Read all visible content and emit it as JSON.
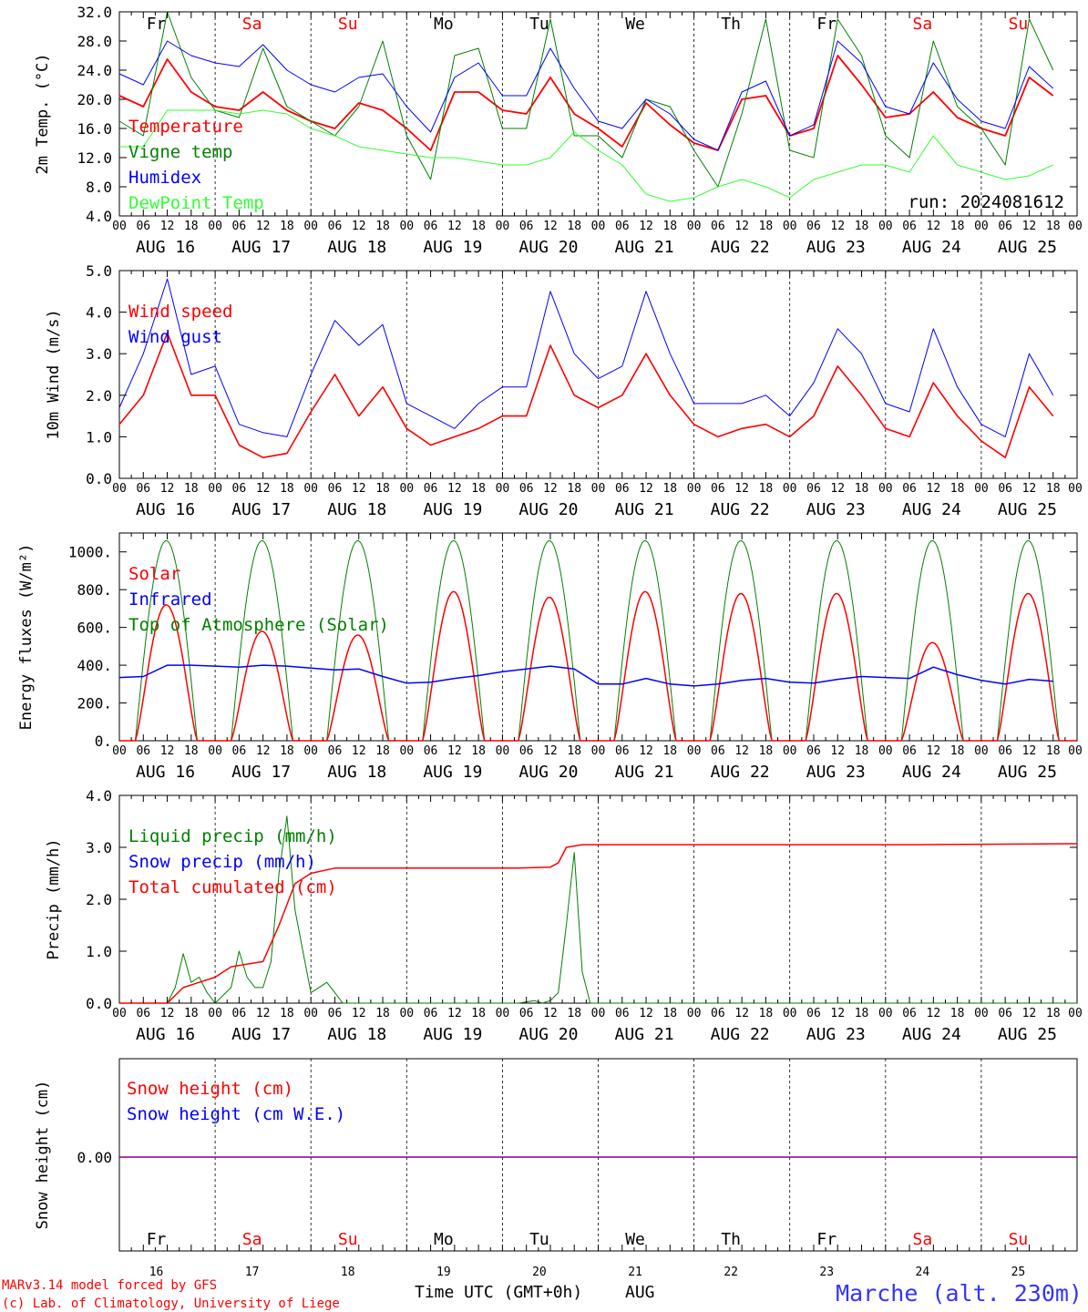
{
  "days": [
    "AUG 16",
    "AUG 17",
    "AUG 18",
    "AUG 19",
    "AUG 20",
    "AUG 21",
    "AUG 22",
    "AUG 23",
    "AUG 24",
    "AUG 25"
  ],
  "hour_ticks": [
    "00",
    "06",
    "12",
    "18"
  ],
  "last_tick": "00",
  "weekdays": [
    {
      "label": "Fr",
      "color": "#000000"
    },
    {
      "label": "Sa",
      "color": "#ff0000"
    },
    {
      "label": "Su",
      "color": "#ff0000"
    },
    {
      "label": "Mo",
      "color": "#000000"
    },
    {
      "label": "Tu",
      "color": "#000000"
    },
    {
      "label": "We",
      "color": "#000000"
    },
    {
      "label": "Th",
      "color": "#000000"
    },
    {
      "label": "Fr",
      "color": "#000000"
    },
    {
      "label": "Sa",
      "color": "#ff0000"
    },
    {
      "label": "Su",
      "color": "#ff0000"
    }
  ],
  "bottom": {
    "day_numbers": [
      "16",
      "17",
      "18",
      "19",
      "20",
      "21",
      "22",
      "23",
      "24",
      "25"
    ],
    "xlabel": "Time UTC (GMT+0h)",
    "month": "AUG",
    "credit_line1": "MARv3.14 model forced by GFS",
    "credit_line2": "(c) Lab. of Climatology, University of Liege",
    "station": "Marche (alt. 230m)"
  },
  "colors": {
    "red": "#ff0000",
    "green": "#008000",
    "blue": "#0000ff",
    "lightgreen": "#33ff33",
    "purple": "#800080"
  },
  "chart_data": [
    {
      "type": "line",
      "ylabel": "2m Temp. (°C)",
      "ylim": [
        4,
        32
      ],
      "yticks": [
        "4.0",
        "8.0",
        "12.0",
        "16.0",
        "20.0",
        "24.0",
        "28.0",
        "32.0"
      ],
      "annotation": "run: 2024081612",
      "legend": [
        "Temperature",
        "Vigne temp",
        "Humidex",
        "DewPoint Temp"
      ],
      "x_hours": [
        0,
        6,
        12,
        18,
        24,
        30,
        36,
        42,
        48,
        54,
        60,
        66,
        72,
        78,
        84,
        90,
        96,
        102,
        108,
        114,
        120,
        126,
        132,
        138,
        144,
        150,
        156,
        162,
        168,
        174,
        180,
        186,
        192,
        198,
        204,
        210,
        216,
        222,
        228,
        234
      ],
      "series": [
        {
          "name": "Temperature",
          "color": "red",
          "values": [
            20.5,
            19,
            25.5,
            21,
            19,
            18.5,
            21,
            18.5,
            17,
            16,
            19.5,
            18.5,
            16,
            13,
            21,
            21,
            18.5,
            18,
            23,
            18,
            16,
            13.5,
            19.5,
            16.5,
            14,
            13,
            20,
            20.5,
            15,
            16,
            26,
            22,
            17.5,
            18,
            21,
            17.5,
            16,
            15,
            23,
            20.5
          ]
        },
        {
          "name": "Vigne temp",
          "color": "green",
          "values": [
            17,
            15,
            32,
            23,
            18.5,
            17.5,
            27,
            19,
            17,
            15,
            19,
            28,
            15,
            9,
            26,
            27,
            16,
            16,
            31,
            15,
            15,
            12,
            20,
            19,
            13,
            8,
            18,
            31,
            13,
            12,
            31,
            26,
            15,
            12,
            28,
            19,
            16,
            11,
            31,
            24
          ]
        },
        {
          "name": "Humidex",
          "color": "blue",
          "values": [
            23.5,
            22,
            28,
            26,
            25,
            24.5,
            27.5,
            24,
            22,
            21,
            23,
            23.5,
            19,
            15.5,
            23,
            25,
            20.5,
            20.5,
            27,
            21.5,
            17,
            16,
            20,
            18,
            14.5,
            13,
            21,
            22.5,
            15,
            16.5,
            28,
            25,
            19,
            18,
            25,
            20,
            17,
            16,
            24.5,
            21.5
          ]
        },
        {
          "name": "DewPoint Temp",
          "color": "lightgreen",
          "values": [
            13.5,
            13.5,
            18.5,
            18.5,
            18.5,
            18,
            18.5,
            18,
            16,
            15,
            13.5,
            13,
            12.5,
            12,
            12,
            11.5,
            11,
            11,
            12,
            15.5,
            13,
            11,
            7,
            6,
            6.5,
            8,
            9,
            8,
            6.5,
            9,
            10,
            11,
            11,
            10,
            15,
            11,
            10,
            9,
            9.5,
            11
          ]
        }
      ]
    },
    {
      "type": "line",
      "ylabel": "10m Wind (m/s)",
      "ylim": [
        0,
        5
      ],
      "yticks": [
        "0.0",
        "1.0",
        "2.0",
        "3.0",
        "4.0",
        "5.0"
      ],
      "legend": [
        "Wind speed",
        "Wind gust"
      ],
      "x_hours": [
        0,
        6,
        12,
        18,
        24,
        30,
        36,
        42,
        48,
        54,
        60,
        66,
        72,
        78,
        84,
        90,
        96,
        102,
        108,
        114,
        120,
        126,
        132,
        138,
        144,
        150,
        156,
        162,
        168,
        174,
        180,
        186,
        192,
        198,
        204,
        210,
        216,
        222,
        228,
        234
      ],
      "series": [
        {
          "name": "Wind speed",
          "color": "red",
          "values": [
            1.3,
            2.0,
            3.5,
            2.0,
            2.0,
            0.8,
            0.5,
            0.6,
            1.6,
            2.5,
            1.5,
            2.2,
            1.2,
            0.8,
            1.0,
            1.2,
            1.5,
            1.5,
            3.2,
            2.0,
            1.7,
            2.0,
            3.0,
            2.0,
            1.3,
            1.0,
            1.2,
            1.3,
            1.0,
            1.5,
            2.7,
            2.0,
            1.2,
            1.0,
            2.3,
            1.5,
            0.9,
            0.5,
            2.2,
            1.5
          ]
        },
        {
          "name": "Wind gust",
          "color": "blue",
          "values": [
            1.7,
            3.0,
            4.8,
            2.5,
            2.7,
            1.3,
            1.1,
            1.0,
            2.5,
            3.8,
            3.2,
            3.7,
            1.8,
            1.5,
            1.2,
            1.8,
            2.2,
            2.2,
            4.5,
            3.0,
            2.4,
            2.7,
            4.5,
            3.0,
            1.8,
            1.8,
            1.8,
            2.0,
            1.5,
            2.3,
            3.6,
            3.0,
            1.8,
            1.6,
            3.6,
            2.2,
            1.3,
            1.0,
            3.0,
            2.0
          ]
        }
      ]
    },
    {
      "type": "line",
      "ylabel": "Energy fluxes (W/m²)",
      "ylim": [
        0,
        1100
      ],
      "yticks": [
        "0.",
        "200.",
        "400.",
        "600.",
        "800.",
        "1000."
      ],
      "legend": [
        "Solar",
        "Infrared",
        "Top of Atmosphere (Solar)"
      ],
      "toa_peak": 1060,
      "solar_peaks": [
        720,
        580,
        560,
        790,
        760,
        790,
        780,
        780,
        520,
        780
      ],
      "x_hours": [
        0,
        6,
        12,
        18,
        24,
        30,
        36,
        42,
        48,
        54,
        60,
        66,
        72,
        78,
        84,
        90,
        96,
        102,
        108,
        114,
        120,
        126,
        132,
        138,
        144,
        150,
        156,
        162,
        168,
        174,
        180,
        186,
        192,
        198,
        204,
        210,
        216,
        222,
        228,
        234
      ],
      "series": [
        {
          "name": "Infrared",
          "color": "blue",
          "values": [
            335,
            340,
            400,
            400,
            395,
            390,
            400,
            395,
            385,
            375,
            380,
            340,
            305,
            310,
            330,
            345,
            365,
            380,
            395,
            380,
            300,
            300,
            330,
            300,
            290,
            300,
            320,
            330,
            310,
            305,
            325,
            340,
            335,
            330,
            390,
            350,
            320,
            300,
            325,
            315
          ]
        }
      ]
    },
    {
      "type": "line",
      "ylabel": "Precip (mm/h)",
      "ylim": [
        0,
        4
      ],
      "yticks": [
        "0.0",
        "1.0",
        "2.0",
        "3.0",
        "4.0"
      ],
      "legend": [
        "Liquid precip (mm/h)",
        "Snow precip (mm/h)",
        "Total cumulated (cm)"
      ],
      "liquid": {
        "x_hours": [
          0,
          12,
          14,
          16,
          18,
          20,
          22,
          24,
          28,
          30,
          32,
          34,
          36,
          38,
          40,
          42,
          44,
          46,
          48,
          50,
          52,
          54,
          56,
          58,
          60,
          80,
          100,
          104,
          106,
          108,
          110,
          112,
          114,
          116,
          118,
          120,
          240
        ],
        "values": [
          0,
          0,
          0.3,
          0.95,
          0.4,
          0.5,
          0.2,
          0,
          0.3,
          1.0,
          0.5,
          0.3,
          0.3,
          0.8,
          2.5,
          3.6,
          1.8,
          1.0,
          0.2,
          0.3,
          0.4,
          0.2,
          0,
          0,
          0,
          0,
          0,
          0.05,
          0,
          0.05,
          0.2,
          1.5,
          2.9,
          0.6,
          0,
          0,
          0
        ]
      },
      "cumulated": {
        "x_hours": [
          0,
          12,
          16,
          20,
          24,
          28,
          36,
          40,
          44,
          48,
          54,
          80,
          100,
          108,
          110,
          112,
          116,
          200,
          240
        ],
        "values": [
          0,
          0,
          0.3,
          0.4,
          0.5,
          0.7,
          0.8,
          1.5,
          2.3,
          2.5,
          2.6,
          2.6,
          2.6,
          2.62,
          2.7,
          3.0,
          3.05,
          3.05,
          3.07
        ]
      }
    },
    {
      "type": "line",
      "ylabel": "Snow height (cm)",
      "ytick": "0.00",
      "legend": [
        "Snow height (cm)",
        "Snow height (cm W.E.)"
      ],
      "value": 0
    }
  ]
}
